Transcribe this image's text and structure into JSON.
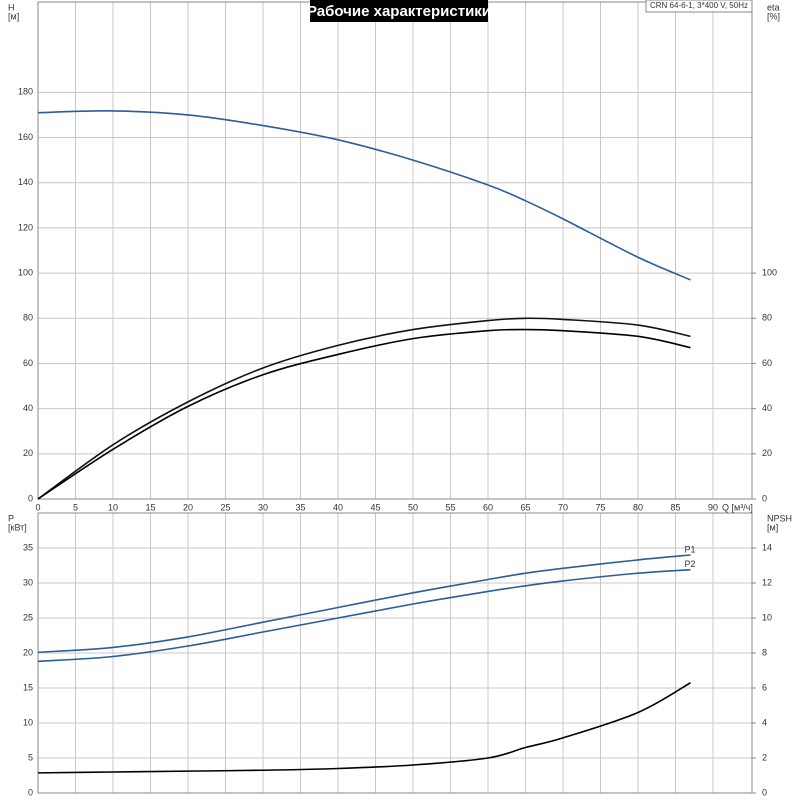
{
  "chart_data": [
    {
      "type": "line",
      "title": "Рабочие характеристики",
      "annotation": "CRN 64-6-1, 3*400 V, 50Hz",
      "x_label": "Q [м³/ч]",
      "y_label": "H",
      "y_unit": "[м]",
      "y2_label": "eta",
      "y2_unit": "[%]",
      "x": [
        0,
        10,
        20,
        30,
        40,
        50,
        60,
        65,
        70,
        80,
        87
      ],
      "xlim": [
        0,
        95.2
      ],
      "xticks": [
        0,
        5,
        10,
        15,
        20,
        25,
        30,
        35,
        40,
        45,
        50,
        55,
        60,
        65,
        70,
        75,
        80,
        85,
        90
      ],
      "ylim": [
        0,
        220
      ],
      "yticks": [
        0,
        20,
        40,
        60,
        80,
        100,
        120,
        140,
        160,
        180
      ],
      "y2lim": [
        0,
        220
      ],
      "y2ticks": [
        0,
        20,
        40,
        60,
        80,
        100
      ],
      "grid": true,
      "x_tick_labels": true,
      "series": [
        {
          "color": "#2a5d9a",
          "values": [
            171,
            171.8,
            170,
            165.3,
            159,
            150,
            139,
            132,
            124,
            107,
            97
          ]
        },
        {
          "color": "#111111",
          "axis": "y2",
          "values": [
            0,
            24,
            43,
            58,
            68,
            75,
            79,
            80,
            79.5,
            77,
            72
          ]
        },
        {
          "color": "#000000",
          "axis": "y2",
          "values": [
            0,
            22,
            41,
            55,
            64,
            71,
            74.5,
            75,
            74.5,
            72,
            67
          ]
        }
      ]
    },
    {
      "type": "line",
      "y_label": "P",
      "y_unit": "[кВт]",
      "y2_label": "NPSH",
      "y2_unit": "[м]",
      "x": [
        0,
        10,
        20,
        30,
        40,
        50,
        60,
        65,
        70,
        80,
        87
      ],
      "xlim": [
        0,
        95.2
      ],
      "xticks": [
        0,
        5,
        10,
        15,
        20,
        25,
        30,
        35,
        40,
        45,
        50,
        55,
        60,
        65,
        70,
        75,
        80,
        85,
        90
      ],
      "ylim": [
        0,
        40
      ],
      "yticks": [
        0,
        5,
        10,
        15,
        20,
        25,
        30,
        35
      ],
      "y2lim": [
        0,
        16
      ],
      "y2ticks": [
        0,
        2,
        4,
        6,
        8,
        10,
        12,
        14
      ],
      "grid": true,
      "x_tick_labels": false,
      "series": [
        {
          "name": "P1",
          "color": "#2a5d9a",
          "values": [
            20.1,
            20.8,
            22.3,
            24.4,
            26.5,
            28.6,
            30.5,
            31.4,
            32.1,
            33.3,
            34.0
          ]
        },
        {
          "name": "P2",
          "color": "#2a5d9a",
          "values": [
            18.8,
            19.5,
            21,
            23,
            25,
            27,
            28.8,
            29.6,
            30.3,
            31.4,
            31.9
          ]
        },
        {
          "color": "#000000",
          "axis": "y2",
          "values": [
            1.15,
            1.2,
            1.25,
            1.3,
            1.4,
            1.6,
            2.0,
            2.6,
            3.15,
            4.6,
            6.3
          ]
        }
      ]
    }
  ]
}
